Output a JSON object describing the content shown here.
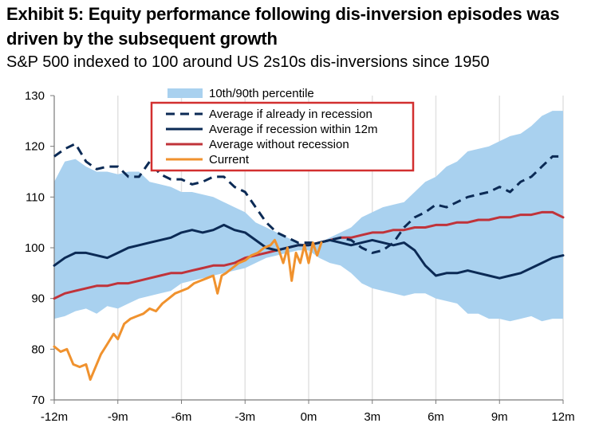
{
  "chart_data": {
    "type": "line",
    "title": "Exhibit 5: Equity performance following dis-inversion episodes was driven by the subsequent growth",
    "subtitle": "S&P 500 indexed to 100 around US 2s10s dis-inversions since 1950",
    "xlabel": "",
    "ylabel": "",
    "x_ticks": [
      "-12m",
      "-9m",
      "-6m",
      "-3m",
      "0m",
      "3m",
      "6m",
      "9m",
      "12m"
    ],
    "y_ticks": [
      "130",
      "120",
      "110",
      "100",
      "90",
      "80",
      "70"
    ],
    "xlim": [
      -12,
      12
    ],
    "ylim": [
      70,
      130
    ],
    "grid": "vertical",
    "legend_position": "top-center",
    "legend": [
      {
        "label": "10th/90th percentile",
        "style": "band",
        "color": "#a9d1ef"
      },
      {
        "label": "Average if already in recession",
        "style": "dashed",
        "color": "#0b2a55"
      },
      {
        "label": "Average if recession within 12m",
        "style": "solid",
        "color": "#0b2a55"
      },
      {
        "label": "Average without recession",
        "style": "solid",
        "color": "#c0333a"
      },
      {
        "label": "Current",
        "style": "solid",
        "color": "#f0922e"
      }
    ],
    "band": {
      "name": "10th/90th percentile",
      "color": "#a9d1ef",
      "x": [
        -12,
        -11.5,
        -11,
        -10.5,
        -10,
        -9.5,
        -9,
        -8.5,
        -8,
        -7.5,
        -7,
        -6.5,
        -6,
        -5.5,
        -5,
        -4.5,
        -4,
        -3.5,
        -3,
        -2.5,
        -2,
        -1.5,
        -1,
        -0.5,
        0,
        0.5,
        1,
        1.5,
        2,
        2.5,
        3,
        3.5,
        4,
        4.5,
        5,
        5.5,
        6,
        6.5,
        7,
        7.5,
        8,
        8.5,
        9,
        9.5,
        10,
        10.5,
        11,
        11.5,
        12
      ],
      "upper": [
        113,
        117,
        117.5,
        116,
        115,
        115,
        114.5,
        115,
        115,
        113,
        112.5,
        112,
        111,
        111,
        110.5,
        110,
        109,
        108,
        107,
        105,
        104,
        103,
        102,
        101,
        100.5,
        101,
        102,
        103,
        104,
        106,
        107,
        108,
        108.5,
        109,
        111,
        113,
        114,
        116,
        117,
        119,
        119.5,
        120,
        121,
        122,
        122.5,
        124,
        126,
        127,
        127
      ],
      "lower": [
        86,
        86.5,
        87.5,
        88,
        87,
        88.5,
        88,
        89,
        90,
        90.5,
        91,
        91.5,
        93,
        93.5,
        94,
        94.5,
        95,
        95.5,
        96,
        97,
        98,
        98.5,
        99,
        99.5,
        99.5,
        98,
        97,
        96.5,
        95,
        93,
        92,
        91.5,
        91,
        90.5,
        91,
        91,
        90,
        89.5,
        89,
        87,
        87,
        86,
        86,
        85.5,
        86,
        86.5,
        85.5,
        86,
        86
      ]
    },
    "series": [
      {
        "name": "Average if already in recession",
        "color": "#0b2a55",
        "style": "dashed",
        "x": [
          -12,
          -11.5,
          -11,
          -10.5,
          -10,
          -9.5,
          -9,
          -8.5,
          -8,
          -7.5,
          -7,
          -6.5,
          -6,
          -5.5,
          -5,
          -4.5,
          -4,
          -3.5,
          -3,
          -2.5,
          -2,
          -1.5,
          -1,
          -0.5,
          0,
          0.5,
          1,
          1.5,
          2,
          2.5,
          3,
          3.5,
          4,
          4.5,
          5,
          5.5,
          6,
          6.5,
          7,
          7.5,
          8,
          8.5,
          9,
          9.5,
          10,
          10.5,
          11,
          11.5,
          12
        ],
        "values": [
          118,
          119.5,
          120.5,
          117,
          115.5,
          116,
          116,
          114,
          114,
          117,
          114.5,
          113.5,
          113.5,
          112.5,
          113,
          114,
          114,
          112,
          111,
          108,
          105,
          103,
          102,
          101,
          101,
          101,
          101.5,
          102,
          101.5,
          100,
          99,
          99.5,
          101,
          104,
          106,
          107,
          108.5,
          108,
          109,
          110,
          110.5,
          111,
          112,
          111,
          113,
          114,
          116,
          118,
          118
        ]
      },
      {
        "name": "Average if recession within 12m",
        "color": "#0b2a55",
        "style": "solid",
        "x": [
          -12,
          -11.5,
          -11,
          -10.5,
          -10,
          -9.5,
          -9,
          -8.5,
          -8,
          -7.5,
          -7,
          -6.5,
          -6,
          -5.5,
          -5,
          -4.5,
          -4,
          -3.5,
          -3,
          -2.5,
          -2,
          -1.5,
          -1,
          -0.5,
          0,
          0.5,
          1,
          1.5,
          2,
          2.5,
          3,
          3.5,
          4,
          4.5,
          5,
          5.5,
          6,
          6.5,
          7,
          7.5,
          8,
          8.5,
          9,
          9.5,
          10,
          10.5,
          11,
          11.5,
          12
        ],
        "values": [
          96.5,
          98,
          99,
          99,
          98.5,
          98,
          99,
          100,
          100.5,
          101,
          101.5,
          102,
          103,
          103.5,
          103,
          103.5,
          104.5,
          103.5,
          103,
          101.5,
          100,
          99.5,
          100,
          100.5,
          100.5,
          101,
          101.5,
          101,
          100.5,
          101,
          101.5,
          101,
          100.5,
          101,
          99.5,
          96.5,
          94.5,
          95,
          95,
          95.5,
          95,
          94.5,
          94,
          94.5,
          95,
          96,
          97,
          98,
          98.5
        ]
      },
      {
        "name": "Average without recession",
        "color": "#c0333a",
        "style": "solid",
        "x": [
          -12,
          -11.5,
          -11,
          -10.5,
          -10,
          -9.5,
          -9,
          -8.5,
          -8,
          -7.5,
          -7,
          -6.5,
          -6,
          -5.5,
          -5,
          -4.5,
          -4,
          -3.5,
          -3,
          -2.5,
          -2,
          -1.5,
          -1,
          -0.5,
          0,
          0.5,
          1,
          1.5,
          2,
          2.5,
          3,
          3.5,
          4,
          4.5,
          5,
          5.5,
          6,
          6.5,
          7,
          7.5,
          8,
          8.5,
          9,
          9.5,
          10,
          10.5,
          11,
          11.5,
          12
        ],
        "values": [
          90,
          91,
          91.5,
          92,
          92.5,
          92.5,
          93,
          93,
          93.5,
          94,
          94.5,
          95,
          95,
          95.5,
          96,
          96.5,
          96.5,
          97,
          98,
          98.5,
          99,
          99.5,
          100,
          100.5,
          100.5,
          101,
          101.5,
          102,
          102,
          102.5,
          103,
          103,
          103.5,
          103.5,
          104,
          104,
          104.5,
          104.5,
          105,
          105,
          105.5,
          105.5,
          106,
          106,
          106.5,
          106.5,
          107,
          107,
          106
        ]
      },
      {
        "name": "Current",
        "color": "#f0922e",
        "style": "solid",
        "x": [
          -12,
          -11.7,
          -11.4,
          -11.1,
          -10.8,
          -10.5,
          -10.3,
          -10.1,
          -9.8,
          -9.5,
          -9.2,
          -9,
          -8.7,
          -8.4,
          -8.1,
          -7.8,
          -7.5,
          -7.2,
          -6.9,
          -6.6,
          -6.3,
          -6,
          -5.7,
          -5.4,
          -5.1,
          -4.8,
          -4.5,
          -4.3,
          -4.1,
          -3.9,
          -3.6,
          -3.3,
          -3,
          -2.7,
          -2.4,
          -2.1,
          -1.8,
          -1.6,
          -1.4,
          -1.2,
          -1,
          -0.8,
          -0.6,
          -0.4,
          -0.2,
          0,
          0.2,
          0.4,
          0.6
        ],
        "values": [
          80.5,
          79.5,
          80,
          77,
          76.5,
          77,
          74,
          76,
          79,
          81,
          83,
          82,
          85,
          86,
          86.5,
          87,
          88,
          87.5,
          89,
          90,
          91,
          91.5,
          92,
          93,
          93.5,
          94,
          94.5,
          91,
          94.5,
          95,
          96,
          97,
          97.5,
          98.5,
          99,
          100,
          100.5,
          101.5,
          99.5,
          97,
          100,
          93.5,
          99,
          97,
          100.5,
          97,
          101,
          98.5,
          101
        ]
      }
    ]
  }
}
